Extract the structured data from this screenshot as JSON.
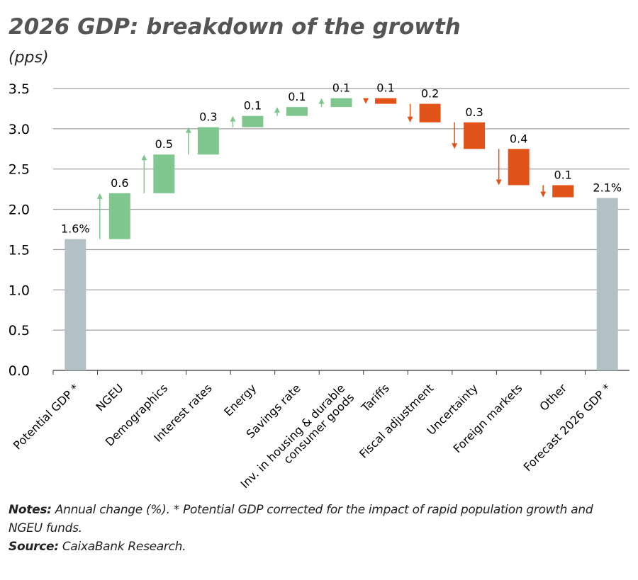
{
  "chart_data": {
    "type": "waterfall",
    "title": "2026 GDP: breakdown of the growth",
    "subtitle": "(pps)",
    "categories": [
      "Potential GDP *",
      "NGEU",
      "Demographics",
      "Interest rates",
      "Energy",
      "Savings rate",
      "Inv. in housing & durable\nconsumer goods",
      "Tariffs",
      "Fiscal adjustment",
      "Uncertainty",
      "Foreign markets",
      "Other",
      "Forecast 2026 GDP *"
    ],
    "measure": [
      "total",
      "relative",
      "relative",
      "relative",
      "relative",
      "relative",
      "relative",
      "relative",
      "relative",
      "relative",
      "relative",
      "relative",
      "total"
    ],
    "values": [
      1.63,
      0.57,
      0.48,
      0.34,
      0.14,
      0.11,
      0.11,
      -0.07,
      -0.23,
      -0.33,
      -0.45,
      -0.15,
      2.14
    ],
    "value_labels": [
      "1.6%",
      "0.6",
      "0.5",
      "0.3",
      "0.1",
      "0.1",
      "0.1",
      "0.1",
      "0.2",
      "0.3",
      "0.4",
      "0.1",
      "2.1%"
    ],
    "colors": {
      "total": "#b3c0c5",
      "increase": "#7fc78f",
      "decrease": "#e2531a"
    },
    "ylim": [
      0,
      3.5
    ],
    "yticks": [
      {
        "value": 0,
        "label": "0.0"
      },
      0.5,
      {
        "value": 1,
        "label": "1.0"
      },
      1.5,
      {
        "value": 2,
        "label": "2.0"
      },
      2.5,
      {
        "value": 3,
        "label": "3.0"
      },
      3.5
    ],
    "grid": true
  },
  "notes": {
    "label": "Notes:",
    "text": "Annual change (%). * Potential GDP corrected for the impact of rapid population growth and NGEU funds."
  },
  "source": {
    "label": "Source:",
    "text": "CaixaBank Research."
  }
}
